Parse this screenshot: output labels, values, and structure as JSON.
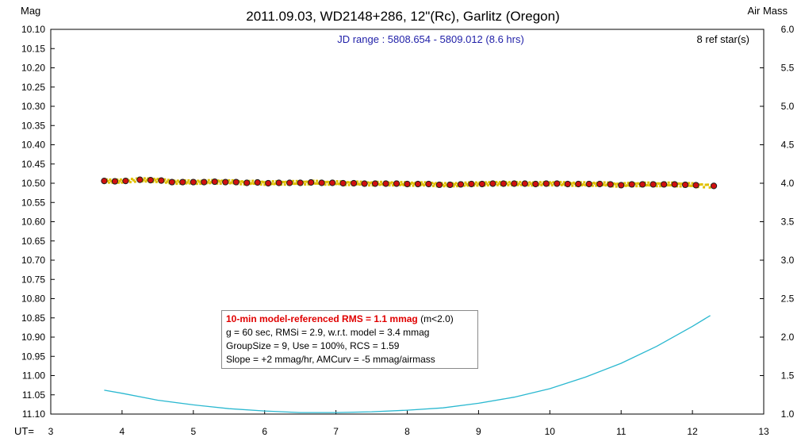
{
  "header": {
    "title": "2011.09.03, WD2148+286, 12\"(Rc), Garlitz (Oregon)",
    "left_axis_name": "Mag",
    "right_axis_name": "Air Mass",
    "x_axis_name": "UT=",
    "jd_range": "JD range : 5808.654 - 5809.012 (8.6 hrs)",
    "ref_stars": "8 ref star(s)"
  },
  "info_box": {
    "rms_main": "10-min model-referenced RMS = 1.1 mmag",
    "rms_suffix": " (m<2.0)",
    "line2": "g = 60 sec, RMSi = 2.9, w.r.t. model = 3.4 mmag",
    "line3": "GroupSize = 9, Use = 100%, RCS = 1.59",
    "line4": "Slope = +2 mmag/hr, AMCurv = -5 mmag/airmass"
  },
  "colors": {
    "frame": "#000000",
    "marker_fill": "#d01010",
    "marker_edge": "#202020",
    "scatter": "#e0c000",
    "airmass_line": "#2ab8d0"
  },
  "chart_data": {
    "type": "scatter",
    "grid": false,
    "xlim": [
      3,
      13
    ],
    "ylim_mag": [
      10.1,
      11.1
    ],
    "mag_axis_inverted": true,
    "ylim_airmass": [
      1.0,
      6.0
    ],
    "x_ticks": [
      "3",
      "4",
      "5",
      "6",
      "7",
      "8",
      "9",
      "10",
      "11",
      "12",
      "13"
    ],
    "mag_ticks": [
      "10.10",
      "10.15",
      "10.20",
      "10.25",
      "10.30",
      "10.35",
      "10.40",
      "10.45",
      "10.50",
      "10.55",
      "10.60",
      "10.65",
      "10.70",
      "10.75",
      "10.80",
      "10.85",
      "10.90",
      "10.95",
      "11.00",
      "11.05",
      "11.10"
    ],
    "airmass_ticks": [
      "6.0",
      "5.5",
      "5.0",
      "4.5",
      "4.0",
      "3.5",
      "3.0",
      "2.5",
      "2.0",
      "1.5",
      "1.0"
    ],
    "series": [
      {
        "kind": "group_means",
        "x": [
          3.75,
          3.9,
          4.05,
          4.25,
          4.4,
          4.55,
          4.7,
          4.85,
          5.0,
          5.15,
          5.3,
          5.45,
          5.6,
          5.75,
          5.9,
          6.05,
          6.2,
          6.35,
          6.5,
          6.65,
          6.8,
          6.95,
          7.1,
          7.25,
          7.4,
          7.55,
          7.7,
          7.85,
          8.0,
          8.15,
          8.3,
          8.45,
          8.6,
          8.75,
          8.9,
          9.05,
          9.2,
          9.35,
          9.5,
          9.65,
          9.8,
          9.95,
          10.1,
          10.25,
          10.4,
          10.55,
          10.7,
          10.85,
          11.0,
          11.15,
          11.3,
          11.45,
          11.6,
          11.75,
          11.9,
          12.05,
          12.3
        ],
        "y": [
          10.494,
          10.495,
          10.494,
          10.491,
          10.492,
          10.493,
          10.497,
          10.497,
          10.497,
          10.497,
          10.496,
          10.497,
          10.497,
          10.499,
          10.498,
          10.5,
          10.499,
          10.499,
          10.499,
          10.498,
          10.499,
          10.499,
          10.5,
          10.5,
          10.501,
          10.501,
          10.501,
          10.501,
          10.502,
          10.502,
          10.502,
          10.504,
          10.504,
          10.503,
          10.502,
          10.502,
          10.501,
          10.501,
          10.501,
          10.501,
          10.502,
          10.501,
          10.501,
          10.502,
          10.502,
          10.502,
          10.502,
          10.503,
          10.505,
          10.503,
          10.503,
          10.503,
          10.503,
          10.503,
          10.504,
          10.505,
          10.507
        ]
      },
      {
        "kind": "airmass",
        "x": [
          3.75,
          4.0,
          4.5,
          5.0,
          5.5,
          6.0,
          6.5,
          7.0,
          7.5,
          8.0,
          8.5,
          9.0,
          9.5,
          10.0,
          10.5,
          11.0,
          11.5,
          12.0,
          12.25
        ],
        "y": [
          1.31,
          1.27,
          1.18,
          1.12,
          1.07,
          1.04,
          1.02,
          1.02,
          1.03,
          1.05,
          1.08,
          1.14,
          1.22,
          1.33,
          1.48,
          1.66,
          1.88,
          2.14,
          2.28
        ]
      }
    ]
  }
}
